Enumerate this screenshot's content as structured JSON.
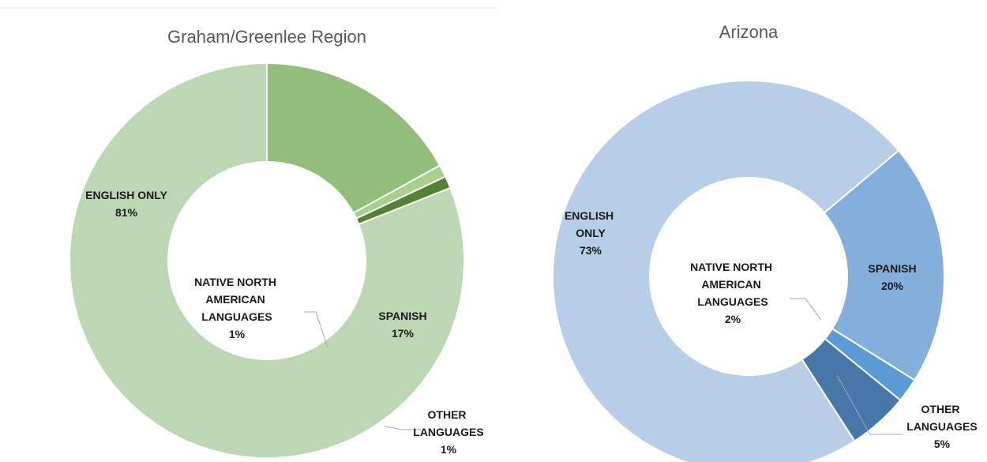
{
  "chart_data": [
    {
      "type": "donut",
      "title": "Graham/Greenlee Region",
      "categories": [
        "ENGLISH ONLY",
        "SPANISH",
        "NATIVE NORTH AMERICAN LANGUAGES",
        "OTHER LANGUAGES"
      ],
      "values": [
        81,
        17,
        1,
        1
      ],
      "value_labels": [
        "81%",
        "17%",
        "1%",
        "1%"
      ],
      "colors": [
        "#bdd6b3",
        "#93bd7b",
        "#a9cf8f",
        "#548235"
      ]
    },
    {
      "type": "donut",
      "title": "Arizona",
      "categories": [
        "ENGLISH ONLY",
        "SPANISH",
        "NATIVE NORTH AMERICAN LANGUAGES",
        "OTHER LANGUAGES"
      ],
      "values": [
        73,
        20,
        2,
        5
      ],
      "value_labels": [
        "73%",
        "20%",
        "2%",
        "5%"
      ],
      "colors": [
        "#b8cde8",
        "#84aedc",
        "#5b9bd5",
        "#4677a8"
      ]
    }
  ]
}
